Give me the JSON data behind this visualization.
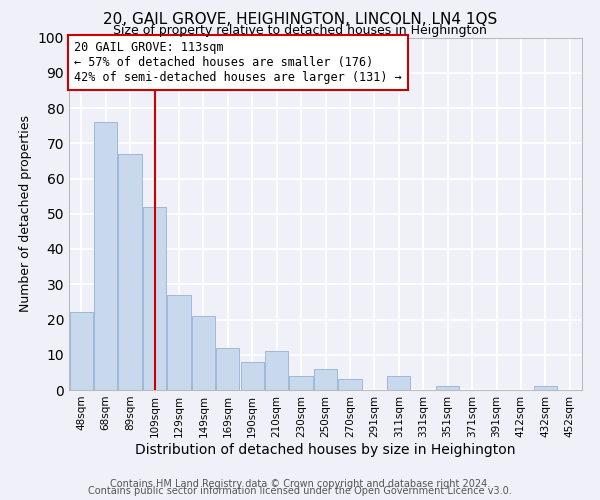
{
  "title": "20, GAIL GROVE, HEIGHINGTON, LINCOLN, LN4 1QS",
  "subtitle": "Size of property relative to detached houses in Heighington",
  "xlabel": "Distribution of detached houses by size in Heighington",
  "ylabel": "Number of detached properties",
  "footer1": "Contains HM Land Registry data © Crown copyright and database right 2024.",
  "footer2": "Contains public sector information licensed under the Open Government Licence v3.0.",
  "bins": [
    "48sqm",
    "68sqm",
    "89sqm",
    "109sqm",
    "129sqm",
    "149sqm",
    "169sqm",
    "190sqm",
    "210sqm",
    "230sqm",
    "250sqm",
    "270sqm",
    "291sqm",
    "311sqm",
    "331sqm",
    "351sqm",
    "371sqm",
    "391sqm",
    "412sqm",
    "432sqm",
    "452sqm"
  ],
  "values": [
    22,
    76,
    67,
    52,
    27,
    21,
    12,
    8,
    11,
    4,
    6,
    3,
    0,
    4,
    0,
    1,
    0,
    0,
    0,
    1,
    0
  ],
  "bar_color": "#c8d9ed",
  "bar_edge_color": "#a0b8d8",
  "vline_x_index": 3,
  "vline_color": "#cc0000",
  "annotation_line1": "20 GAIL GROVE: 113sqm",
  "annotation_line2": "← 57% of detached houses are smaller (176)",
  "annotation_line3": "42% of semi-detached houses are larger (131) →",
  "annotation_box_color": "white",
  "annotation_box_edge_color": "#cc0000",
  "ylim": [
    0,
    100
  ],
  "background_color": "#f0f0f8",
  "grid_color": "#ffffff",
  "title_fontsize": 11,
  "subtitle_fontsize": 9,
  "xlabel_fontsize": 10,
  "ylabel_fontsize": 9,
  "tick_fontsize": 7.5,
  "annotation_fontsize": 8.5,
  "footer_fontsize": 7
}
